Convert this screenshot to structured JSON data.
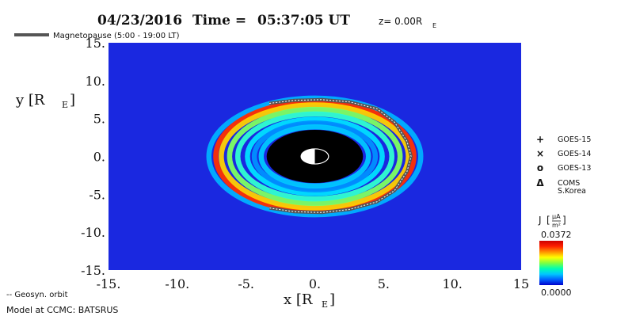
{
  "header": {
    "date": "04/23/2016",
    "time_label": "Time =",
    "time": "05:37:05 UT",
    "z_label": "z= 0.00R",
    "z_subscript": "E"
  },
  "legend_top": {
    "magnetopause": "Magnetopause (5:00 - 19:00 LT)"
  },
  "satellite_legend": [
    {
      "symbol": "+",
      "label": "GOES-15"
    },
    {
      "symbol": "×",
      "label": "GOES-14"
    },
    {
      "symbol": "o",
      "label": "GOES-13"
    },
    {
      "symbol": "Δ",
      "label": "COMS\nS.Korea"
    }
  ],
  "colorbar": {
    "label": "J [µA/m²]",
    "label_text": "J",
    "unit_numerator": "µA",
    "unit_denominator": "m²",
    "max": "0.0372",
    "min": "0.0000",
    "colors": [
      "#0000cc",
      "#0060ff",
      "#00c8ff",
      "#00ffb0",
      "#80ff40",
      "#ffff00",
      "#ff9000",
      "#ff2000",
      "#cc0000"
    ]
  },
  "footer": {
    "geosyn": "-- Geosyn. orbit",
    "model": "Model at CCMC: BATSRUS"
  },
  "colors": {
    "background_field": "#1a28e0",
    "earth_disk": "#000000",
    "magnetopause_line": "#555555"
  },
  "chart_data": {
    "type": "heatmap",
    "xlabel": "x [R",
    "xlabel_subscript": "E",
    "xlabel_close": "]",
    "ylabel": "y [R",
    "ylabel_subscript": "E",
    "ylabel_close": "]",
    "xlim": [
      -15,
      15
    ],
    "ylim": [
      -15,
      15
    ],
    "x_ticks": [
      "-15.",
      "-10.",
      "-5.",
      "0.",
      "5.",
      "10.",
      "15"
    ],
    "y_ticks": [
      "15.",
      "10.",
      "5.",
      "0.",
      "-5.",
      "-10.",
      "-15."
    ],
    "x_tick_values": [
      -15,
      -10,
      -5,
      0,
      5,
      10,
      15
    ],
    "y_tick_values": [
      15,
      10,
      5,
      0,
      -5,
      -10,
      -15
    ],
    "value_range": [
      0.0,
      0.0372
    ],
    "inner_disk_radius": 3.5,
    "earth_radius": 1.0,
    "rings": [
      {
        "r": 3.9,
        "color": "#00c8ff",
        "level": 0.016
      },
      {
        "r": 4.4,
        "color": "#0090ff",
        "level": 0.009
      },
      {
        "r": 4.9,
        "color": "#00e0ff",
        "level": 0.018
      },
      {
        "r": 5.6,
        "color": "#30ffd0",
        "level": 0.022
      },
      {
        "r": 6.2,
        "color": "#80ff60",
        "level": 0.026
      },
      {
        "r": 6.8,
        "color": "#ffd000",
        "level": 0.031
      },
      {
        "r": 7.2,
        "color": "#ff3000",
        "level": 0.0372
      },
      {
        "r": 7.7,
        "color": "#00b0ff",
        "level": 0.012
      }
    ],
    "magnetopause": [
      [
        -3.3,
        7.0
      ],
      [
        -1.5,
        7.4
      ],
      [
        0.5,
        7.5
      ],
      [
        2.5,
        7.2
      ],
      [
        4.5,
        6.3
      ],
      [
        5.8,
        4.5
      ],
      [
        6.7,
        2.0
      ],
      [
        7.0,
        0.0
      ],
      [
        6.7,
        -2.0
      ],
      [
        5.8,
        -4.5
      ],
      [
        4.5,
        -6.0
      ],
      [
        2.5,
        -7.0
      ],
      [
        0.5,
        -7.4
      ],
      [
        -1.5,
        -7.3
      ],
      [
        -3.3,
        -6.8
      ]
    ]
  }
}
